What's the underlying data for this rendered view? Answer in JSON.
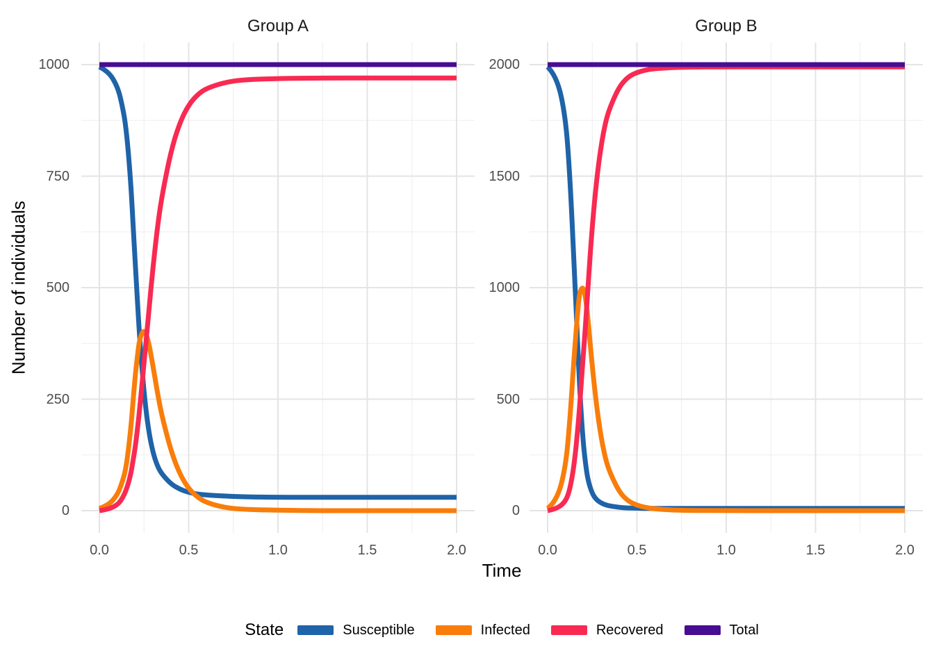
{
  "chart_data": {
    "type": "line",
    "xlabel": "Time",
    "ylabel": "Number of individuals",
    "grid": "major and minor, light grey on white panel",
    "legend": {
      "title": "State",
      "position": "bottom",
      "entries": [
        {
          "label": "Susceptible",
          "color": "#1F63A8"
        },
        {
          "label": "Infected",
          "color": "#F97D0B"
        },
        {
          "label": "Recovered",
          "color": "#F92A52"
        },
        {
          "label": "Total",
          "color": "#470D92"
        }
      ]
    },
    "facets": [
      {
        "title": "Group A",
        "xlim": [
          0,
          2
        ],
        "ylim": [
          0,
          1000
        ],
        "xticks": [
          0,
          0.5,
          1,
          1.5,
          2
        ],
        "xtick_labels": [
          "0.0",
          "0.5",
          "1.0",
          "1.5",
          "2.0"
        ],
        "xminor": [
          0.25,
          0.75,
          1.25,
          1.75
        ],
        "yticks": [
          0,
          250,
          500,
          750,
          1000
        ],
        "ytick_labels": [
          "0",
          "250",
          "500",
          "750",
          "1000"
        ],
        "yminor": [
          125,
          375,
          625,
          875
        ],
        "x": [
          0,
          0.05,
          0.1,
          0.125,
          0.15,
          0.175,
          0.1875,
          0.2,
          0.2125,
          0.225,
          0.25,
          0.275,
          0.3,
          0.325,
          0.35,
          0.4,
          0.45,
          0.5,
          0.55,
          0.6,
          0.7,
          0.8,
          1,
          1.25,
          1.5,
          1.75,
          2
        ],
        "series": [
          {
            "name": "Susceptible",
            "color": "#1F63A8",
            "values": [
              995,
              985,
              952,
              915,
              860,
              740,
              650,
              560,
              475,
              390,
              262,
              180,
              130,
              100,
              82,
              60,
              48,
              41,
              37,
              35,
              33,
              31,
              30,
              30,
              30,
              30,
              30
            ]
          },
          {
            "name": "Infected",
            "color": "#F97D0B",
            "values": [
              5,
              12,
              35,
              60,
              95,
              180,
              240,
              300,
              345,
              385,
              408,
              380,
              325,
              265,
              213,
              135,
              82,
              49,
              30,
              18,
              7,
              3,
              1,
              0,
              0,
              0,
              0
            ]
          },
          {
            "name": "Recovered",
            "color": "#F92A52",
            "values": [
              0,
              3,
              13,
              25,
              45,
              80,
              110,
              140,
              180,
              225,
              330,
              440,
              545,
              635,
              705,
              805,
              870,
              910,
              933,
              947,
              960,
              966,
              969,
              970,
              970,
              970,
              970
            ]
          },
          {
            "name": "Total",
            "color": "#470D92",
            "values": [
              1000,
              1000,
              1000,
              1000,
              1000,
              1000,
              1000,
              1000,
              1000,
              1000,
              1000,
              1000,
              1000,
              1000,
              1000,
              1000,
              1000,
              1000,
              1000,
              1000,
              1000,
              1000,
              1000,
              1000,
              1000,
              1000,
              1000
            ]
          }
        ]
      },
      {
        "title": "Group B",
        "xlim": [
          0,
          2
        ],
        "ylim": [
          0,
          2000
        ],
        "xticks": [
          0,
          0.5,
          1,
          1.5,
          2
        ],
        "xtick_labels": [
          "0.0",
          "0.5",
          "1.0",
          "1.5",
          "2.0"
        ],
        "xminor": [
          0.25,
          0.75,
          1.25,
          1.75
        ],
        "yticks": [
          0,
          500,
          1000,
          1500,
          2000
        ],
        "ytick_labels": [
          "0",
          "500",
          "1000",
          "1500",
          "2000"
        ],
        "yminor": [
          250,
          750,
          1250,
          1750
        ],
        "x": [
          0,
          0.05,
          0.1,
          0.125,
          0.15,
          0.175,
          0.1875,
          0.2,
          0.2125,
          0.225,
          0.25,
          0.275,
          0.3,
          0.325,
          0.35,
          0.4,
          0.45,
          0.5,
          0.55,
          0.6,
          0.7,
          0.8,
          1,
          1.25,
          1.5,
          1.75,
          2
        ],
        "series": [
          {
            "name": "Susceptible",
            "color": "#1F63A8",
            "values": [
              1990,
              1950,
              1770,
              1500,
              1080,
              620,
              440,
              300,
              210,
              140,
              75,
              48,
              34,
              26,
              21,
              15,
              12,
              11,
              10,
              10,
              10,
              10,
              10,
              10,
              10,
              10,
              10
            ]
          },
          {
            "name": "Infected",
            "color": "#F97D0B",
            "values": [
              10,
              42,
              190,
              405,
              710,
              960,
              995,
              1000,
              955,
              870,
              645,
              462,
              326,
              229,
              169,
              85,
              43,
              24,
              14,
              8,
              3,
              1,
              0,
              0,
              0,
              0,
              0
            ]
          },
          {
            "name": "Recovered",
            "color": "#F92A52",
            "values": [
              0,
              8,
              40,
              95,
              210,
              420,
              565,
              700,
              835,
              990,
              1280,
              1490,
              1640,
              1745,
              1810,
              1900,
              1945,
              1965,
              1976,
              1982,
              1987,
              1989,
              1990,
              1990,
              1990,
              1990,
              1990
            ]
          },
          {
            "name": "Total",
            "color": "#470D92",
            "values": [
              2000,
              2000,
              2000,
              2000,
              2000,
              2000,
              2000,
              2000,
              2000,
              2000,
              2000,
              2000,
              2000,
              2000,
              2000,
              2000,
              2000,
              2000,
              2000,
              2000,
              2000,
              2000,
              2000,
              2000,
              2000,
              2000,
              2000
            ]
          }
        ]
      }
    ]
  }
}
